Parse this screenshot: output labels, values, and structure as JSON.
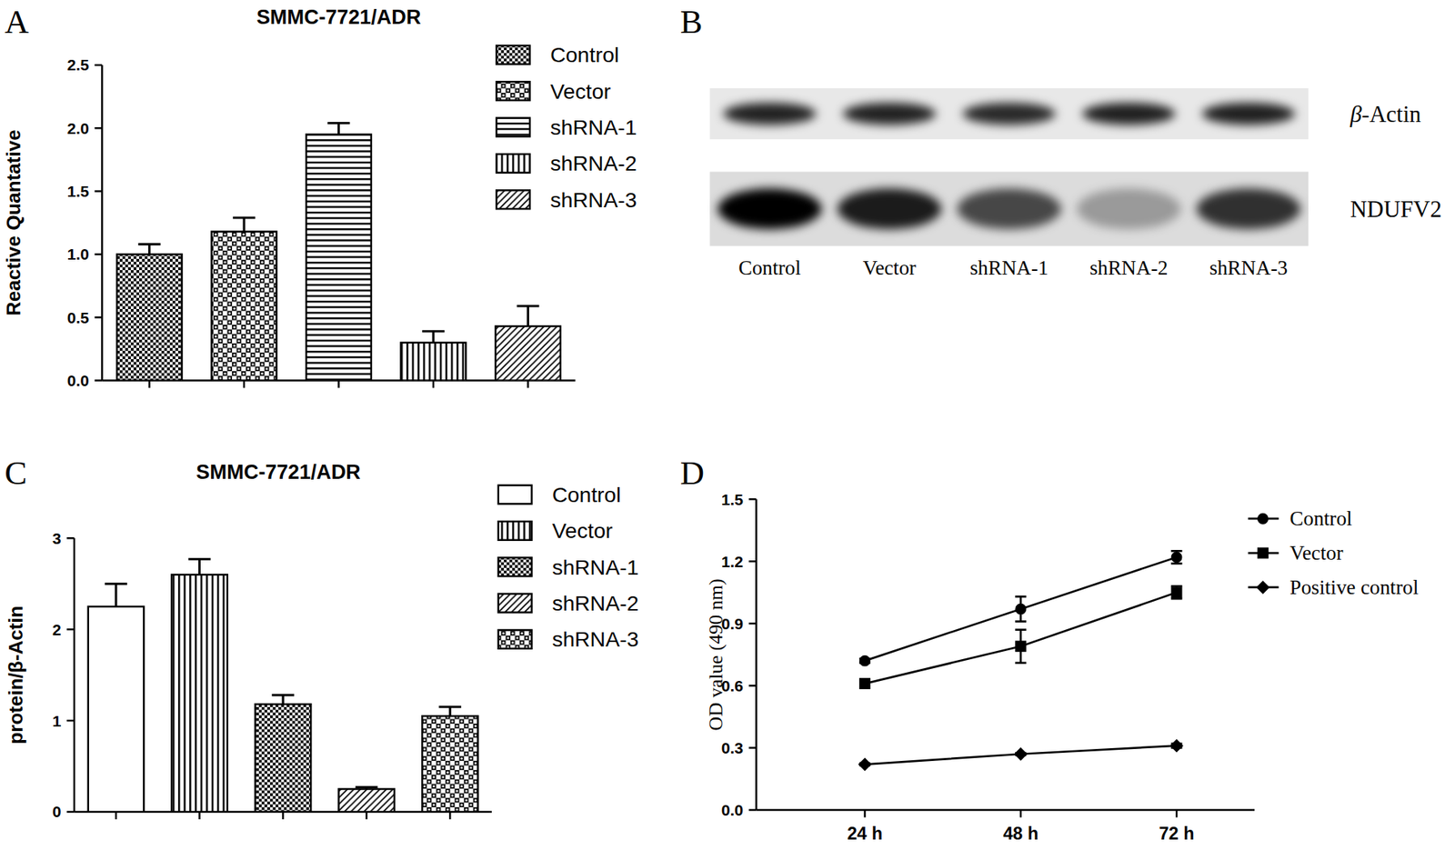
{
  "chart_data": [
    {
      "type": "bar",
      "panel_label": "A",
      "title": "SMMC-7721/ADR",
      "y_label": "Reactive Quantative",
      "categories": [
        "Control",
        "Vector",
        "shRNA-1",
        "shRNA-2",
        "shRNA-3"
      ],
      "values": [
        1.0,
        1.18,
        1.95,
        0.3,
        0.43
      ],
      "errors": [
        0.08,
        0.11,
        0.09,
        0.09,
        0.16
      ],
      "ylim": [
        0,
        2.5
      ],
      "yticks": [
        {
          "value": 0,
          "label": "0.0"
        },
        0.5,
        {
          "value": 1,
          "label": "1.0"
        },
        1.5,
        {
          "value": 2,
          "label": "2.0"
        },
        2.5
      ],
      "tick_labels": "y",
      "legend": "top-right",
      "color": "#000000"
    },
    {
      "type": "blot",
      "panel_label": "B",
      "categories": [
        "Control",
        "Vector",
        "shRNA-1",
        "shRNA-2",
        "shRNA-3"
      ],
      "series": [
        {
          "name": "β-Actin",
          "values": [
            0.85,
            0.85,
            0.82,
            0.86,
            0.86
          ]
        },
        {
          "name": "NDUFV2",
          "values": [
            1.0,
            0.88,
            0.68,
            0.3,
            0.78
          ]
        }
      ]
    },
    {
      "type": "bar",
      "panel_label": "C",
      "title": "SMMC-7721/ADR",
      "y_label": "protein/β-Actin",
      "categories": [
        "Control",
        "Vector",
        "shRNA-1",
        "shRNA-2",
        "shRNA-3"
      ],
      "values": [
        2.25,
        2.6,
        1.18,
        0.25,
        1.05
      ],
      "errors": [
        0.25,
        0.17,
        0.1,
        0.02,
        0.1
      ],
      "ylim": [
        0,
        3
      ],
      "yticks": [
        0,
        1,
        2,
        3
      ],
      "tick_labels": "y",
      "legend": "top-right",
      "color": "#000000"
    },
    {
      "type": "line",
      "panel_label": "D",
      "y_label": "OD value (490 nm)",
      "categories": [
        "24 h",
        "48 h",
        "72 h"
      ],
      "series": [
        {
          "name": "Control",
          "color": "#000000",
          "marker": "circle",
          "values": [
            0.72,
            0.97,
            1.22
          ],
          "errors": [
            0.01,
            0.06,
            0.03
          ]
        },
        {
          "name": "Vector",
          "color": "#000000",
          "marker": "square",
          "values": [
            0.61,
            0.79,
            1.05
          ],
          "errors": [
            0.02,
            0.08,
            0.03
          ]
        },
        {
          "name": "Positive control",
          "color": "#000000",
          "marker": "diamond",
          "values": [
            0.22,
            0.27,
            0.31
          ],
          "errors": [
            0.005,
            0.005,
            0.01
          ]
        }
      ],
      "ylim": [
        0,
        1.5
      ],
      "yticks": [
        {
          "value": 0,
          "label": "0.0"
        },
        0.3,
        0.6,
        0.9,
        1.2,
        1.5
      ],
      "legend": "top-right"
    }
  ]
}
